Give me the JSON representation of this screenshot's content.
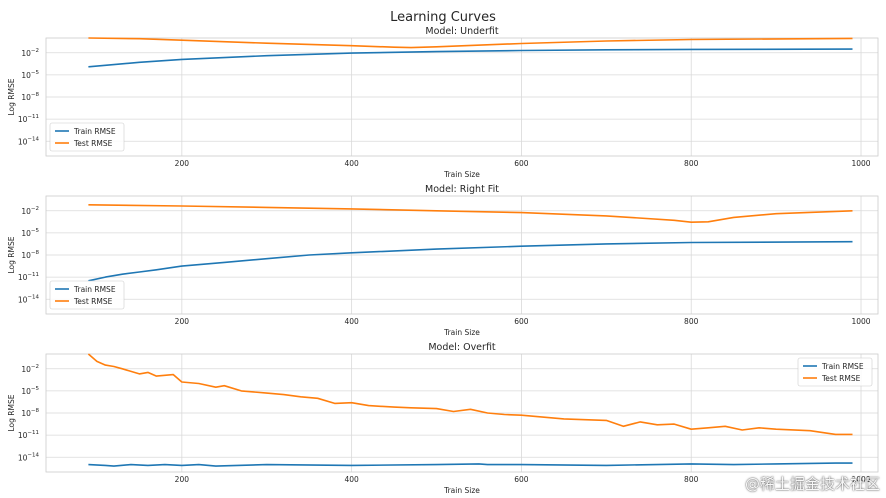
{
  "suptitle": "Learning Curves",
  "watermark": "@稀土掘金技术社区",
  "colors": {
    "train": "#1f77b4",
    "test": "#ff7f0e",
    "grid": "#d9d9d9",
    "spine": "#cccccc"
  },
  "chart_data": [
    {
      "type": "line",
      "title": "Model: Underfit",
      "xlabel": "Train Size",
      "ylabel": "Log RMSE",
      "yscale": "log",
      "xlim": [
        40,
        1020
      ],
      "ylim_exp": [
        -16,
        0
      ],
      "xticks": [
        200,
        400,
        600,
        800,
        1000
      ],
      "yticks": [
        {
          "exp": -2,
          "label": "-2"
        },
        {
          "exp": -5,
          "label": "-5"
        },
        {
          "exp": -8,
          "label": "-8"
        },
        {
          "exp": -11,
          "label": "-11"
        },
        {
          "exp": -14,
          "label": "-14"
        }
      ],
      "legend_loc": "lower left",
      "grid": true,
      "series": [
        {
          "name": "Train RMSE",
          "color_key": "train",
          "x": [
            90,
            150,
            200,
            300,
            400,
            500,
            600,
            700,
            800,
            990
          ],
          "log10_y": [
            -3.9,
            -3.3,
            -2.9,
            -2.4,
            -2.05,
            -1.85,
            -1.7,
            -1.6,
            -1.55,
            -1.5
          ]
        },
        {
          "name": "Test RMSE",
          "color_key": "test",
          "x": [
            90,
            150,
            200,
            300,
            400,
            450,
            470,
            500,
            600,
            700,
            800,
            990
          ],
          "log10_y": [
            0.0,
            -0.1,
            -0.3,
            -0.7,
            -1.05,
            -1.25,
            -1.3,
            -1.2,
            -0.75,
            -0.4,
            -0.2,
            -0.05
          ]
        }
      ]
    },
    {
      "type": "line",
      "title": "Model: Right Fit",
      "xlabel": "Train Size",
      "ylabel": "Log RMSE",
      "yscale": "log",
      "xlim": [
        40,
        1020
      ],
      "ylim_exp": [
        -16,
        0
      ],
      "xticks": [
        200,
        400,
        600,
        800,
        1000
      ],
      "yticks": [
        {
          "exp": -2,
          "label": "-2"
        },
        {
          "exp": -5,
          "label": "-5"
        },
        {
          "exp": -8,
          "label": "-8"
        },
        {
          "exp": -11,
          "label": "-11"
        },
        {
          "exp": -14,
          "label": "-14"
        }
      ],
      "legend_loc": "lower left",
      "grid": true,
      "series": [
        {
          "name": "Train RMSE",
          "color_key": "train",
          "x": [
            90,
            110,
            130,
            150,
            170,
            200,
            250,
            300,
            350,
            400,
            500,
            600,
            700,
            800,
            990
          ],
          "log10_y": [
            -11.5,
            -11.0,
            -10.6,
            -10.3,
            -10.0,
            -9.5,
            -9.0,
            -8.5,
            -8.0,
            -7.7,
            -7.2,
            -6.8,
            -6.5,
            -6.3,
            -6.2
          ]
        },
        {
          "name": "Test RMSE",
          "color_key": "test",
          "x": [
            90,
            200,
            300,
            400,
            500,
            600,
            700,
            780,
            800,
            820,
            850,
            900,
            990
          ],
          "log10_y": [
            -1.2,
            -1.35,
            -1.55,
            -1.75,
            -2.0,
            -2.25,
            -2.7,
            -3.3,
            -3.55,
            -3.5,
            -2.9,
            -2.4,
            -2.0
          ]
        }
      ]
    },
    {
      "type": "line",
      "title": "Model: Overfit",
      "xlabel": "Train Size",
      "ylabel": "Log RMSE",
      "yscale": "log",
      "xlim": [
        40,
        1020
      ],
      "ylim_exp": [
        -16,
        0
      ],
      "xticks": [
        200,
        400,
        600,
        800,
        1000
      ],
      "yticks": [
        {
          "exp": -2,
          "label": "-2"
        },
        {
          "exp": -5,
          "label": "-5"
        },
        {
          "exp": -8,
          "label": "-8"
        },
        {
          "exp": -11,
          "label": "-11"
        },
        {
          "exp": -14,
          "label": "-14"
        }
      ],
      "legend_loc": "upper right",
      "grid": true,
      "series": [
        {
          "name": "Train RMSE",
          "color_key": "train",
          "x": [
            90,
            110,
            120,
            140,
            160,
            180,
            200,
            220,
            240,
            300,
            400,
            500,
            550,
            560,
            600,
            700,
            800,
            850,
            900,
            970,
            990
          ],
          "log10_y": [
            -15.0,
            -15.1,
            -15.2,
            -15.0,
            -15.1,
            -15.0,
            -15.1,
            -15.0,
            -15.2,
            -15.0,
            -15.1,
            -15.0,
            -14.9,
            -15.0,
            -15.0,
            -15.1,
            -14.9,
            -15.0,
            -14.9,
            -14.8,
            -14.8
          ]
        },
        {
          "name": "Test RMSE",
          "color_key": "test",
          "x": [
            90,
            100,
            110,
            120,
            130,
            150,
            160,
            170,
            190,
            200,
            220,
            240,
            250,
            270,
            300,
            320,
            340,
            360,
            380,
            400,
            420,
            450,
            470,
            500,
            520,
            540,
            560,
            580,
            600,
            650,
            700,
            720,
            740,
            760,
            780,
            800,
            820,
            840,
            860,
            880,
            900,
            940,
            970,
            990
          ],
          "log10_y": [
            0.0,
            -1.0,
            -1.5,
            -1.7,
            -2.0,
            -2.7,
            -2.5,
            -3.0,
            -2.8,
            -3.8,
            -4.0,
            -4.5,
            -4.3,
            -5.0,
            -5.3,
            -5.5,
            -5.8,
            -6.0,
            -6.7,
            -6.6,
            -7.0,
            -7.2,
            -7.3,
            -7.4,
            -7.8,
            -7.5,
            -8.0,
            -8.2,
            -8.3,
            -8.8,
            -9.0,
            -9.8,
            -9.2,
            -9.6,
            -9.5,
            -10.2,
            -10.0,
            -9.8,
            -10.3,
            -10.0,
            -10.2,
            -10.4,
            -10.9,
            -10.9
          ]
        }
      ]
    }
  ]
}
